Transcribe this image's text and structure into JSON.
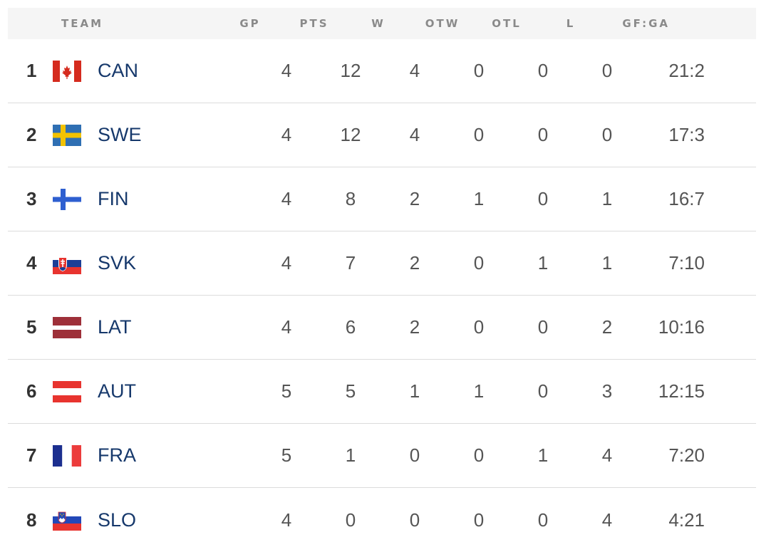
{
  "headers": {
    "team": "TEAM",
    "gp": "GP",
    "pts": "PTS",
    "w": "W",
    "otw": "OTW",
    "otl": "OTL",
    "l": "L",
    "gfga": "GF:GA"
  },
  "rows": [
    {
      "rank": "1",
      "team": "CAN",
      "flag_icon": "canada-flag-icon",
      "gp": "4",
      "pts": "12",
      "w": "4",
      "otw": "0",
      "otl": "0",
      "l": "0",
      "gfga": "21:2"
    },
    {
      "rank": "2",
      "team": "SWE",
      "flag_icon": "sweden-flag-icon",
      "gp": "4",
      "pts": "12",
      "w": "4",
      "otw": "0",
      "otl": "0",
      "l": "0",
      "gfga": "17:3"
    },
    {
      "rank": "3",
      "team": "FIN",
      "flag_icon": "finland-flag-icon",
      "gp": "4",
      "pts": "8",
      "w": "2",
      "otw": "1",
      "otl": "0",
      "l": "1",
      "gfga": "16:7"
    },
    {
      "rank": "4",
      "team": "SVK",
      "flag_icon": "slovakia-flag-icon",
      "gp": "4",
      "pts": "7",
      "w": "2",
      "otw": "0",
      "otl": "1",
      "l": "1",
      "gfga": "7:10"
    },
    {
      "rank": "5",
      "team": "LAT",
      "flag_icon": "latvia-flag-icon",
      "gp": "4",
      "pts": "6",
      "w": "2",
      "otw": "0",
      "otl": "0",
      "l": "2",
      "gfga": "10:16"
    },
    {
      "rank": "6",
      "team": "AUT",
      "flag_icon": "austria-flag-icon",
      "gp": "5",
      "pts": "5",
      "w": "1",
      "otw": "1",
      "otl": "0",
      "l": "3",
      "gfga": "12:15"
    },
    {
      "rank": "7",
      "team": "FRA",
      "flag_icon": "france-flag-icon",
      "gp": "5",
      "pts": "1",
      "w": "0",
      "otw": "0",
      "otl": "1",
      "l": "4",
      "gfga": "7:20"
    },
    {
      "rank": "8",
      "team": "SLO",
      "flag_icon": "slovenia-flag-icon",
      "gp": "4",
      "pts": "0",
      "w": "0",
      "otw": "0",
      "otl": "0",
      "l": "4",
      "gfga": "4:21"
    }
  ],
  "colors": {
    "team_text": "#16386b",
    "header_bg": "#f5f5f5",
    "header_text": "#8a8a8a",
    "divider": "#dcdcdc"
  }
}
